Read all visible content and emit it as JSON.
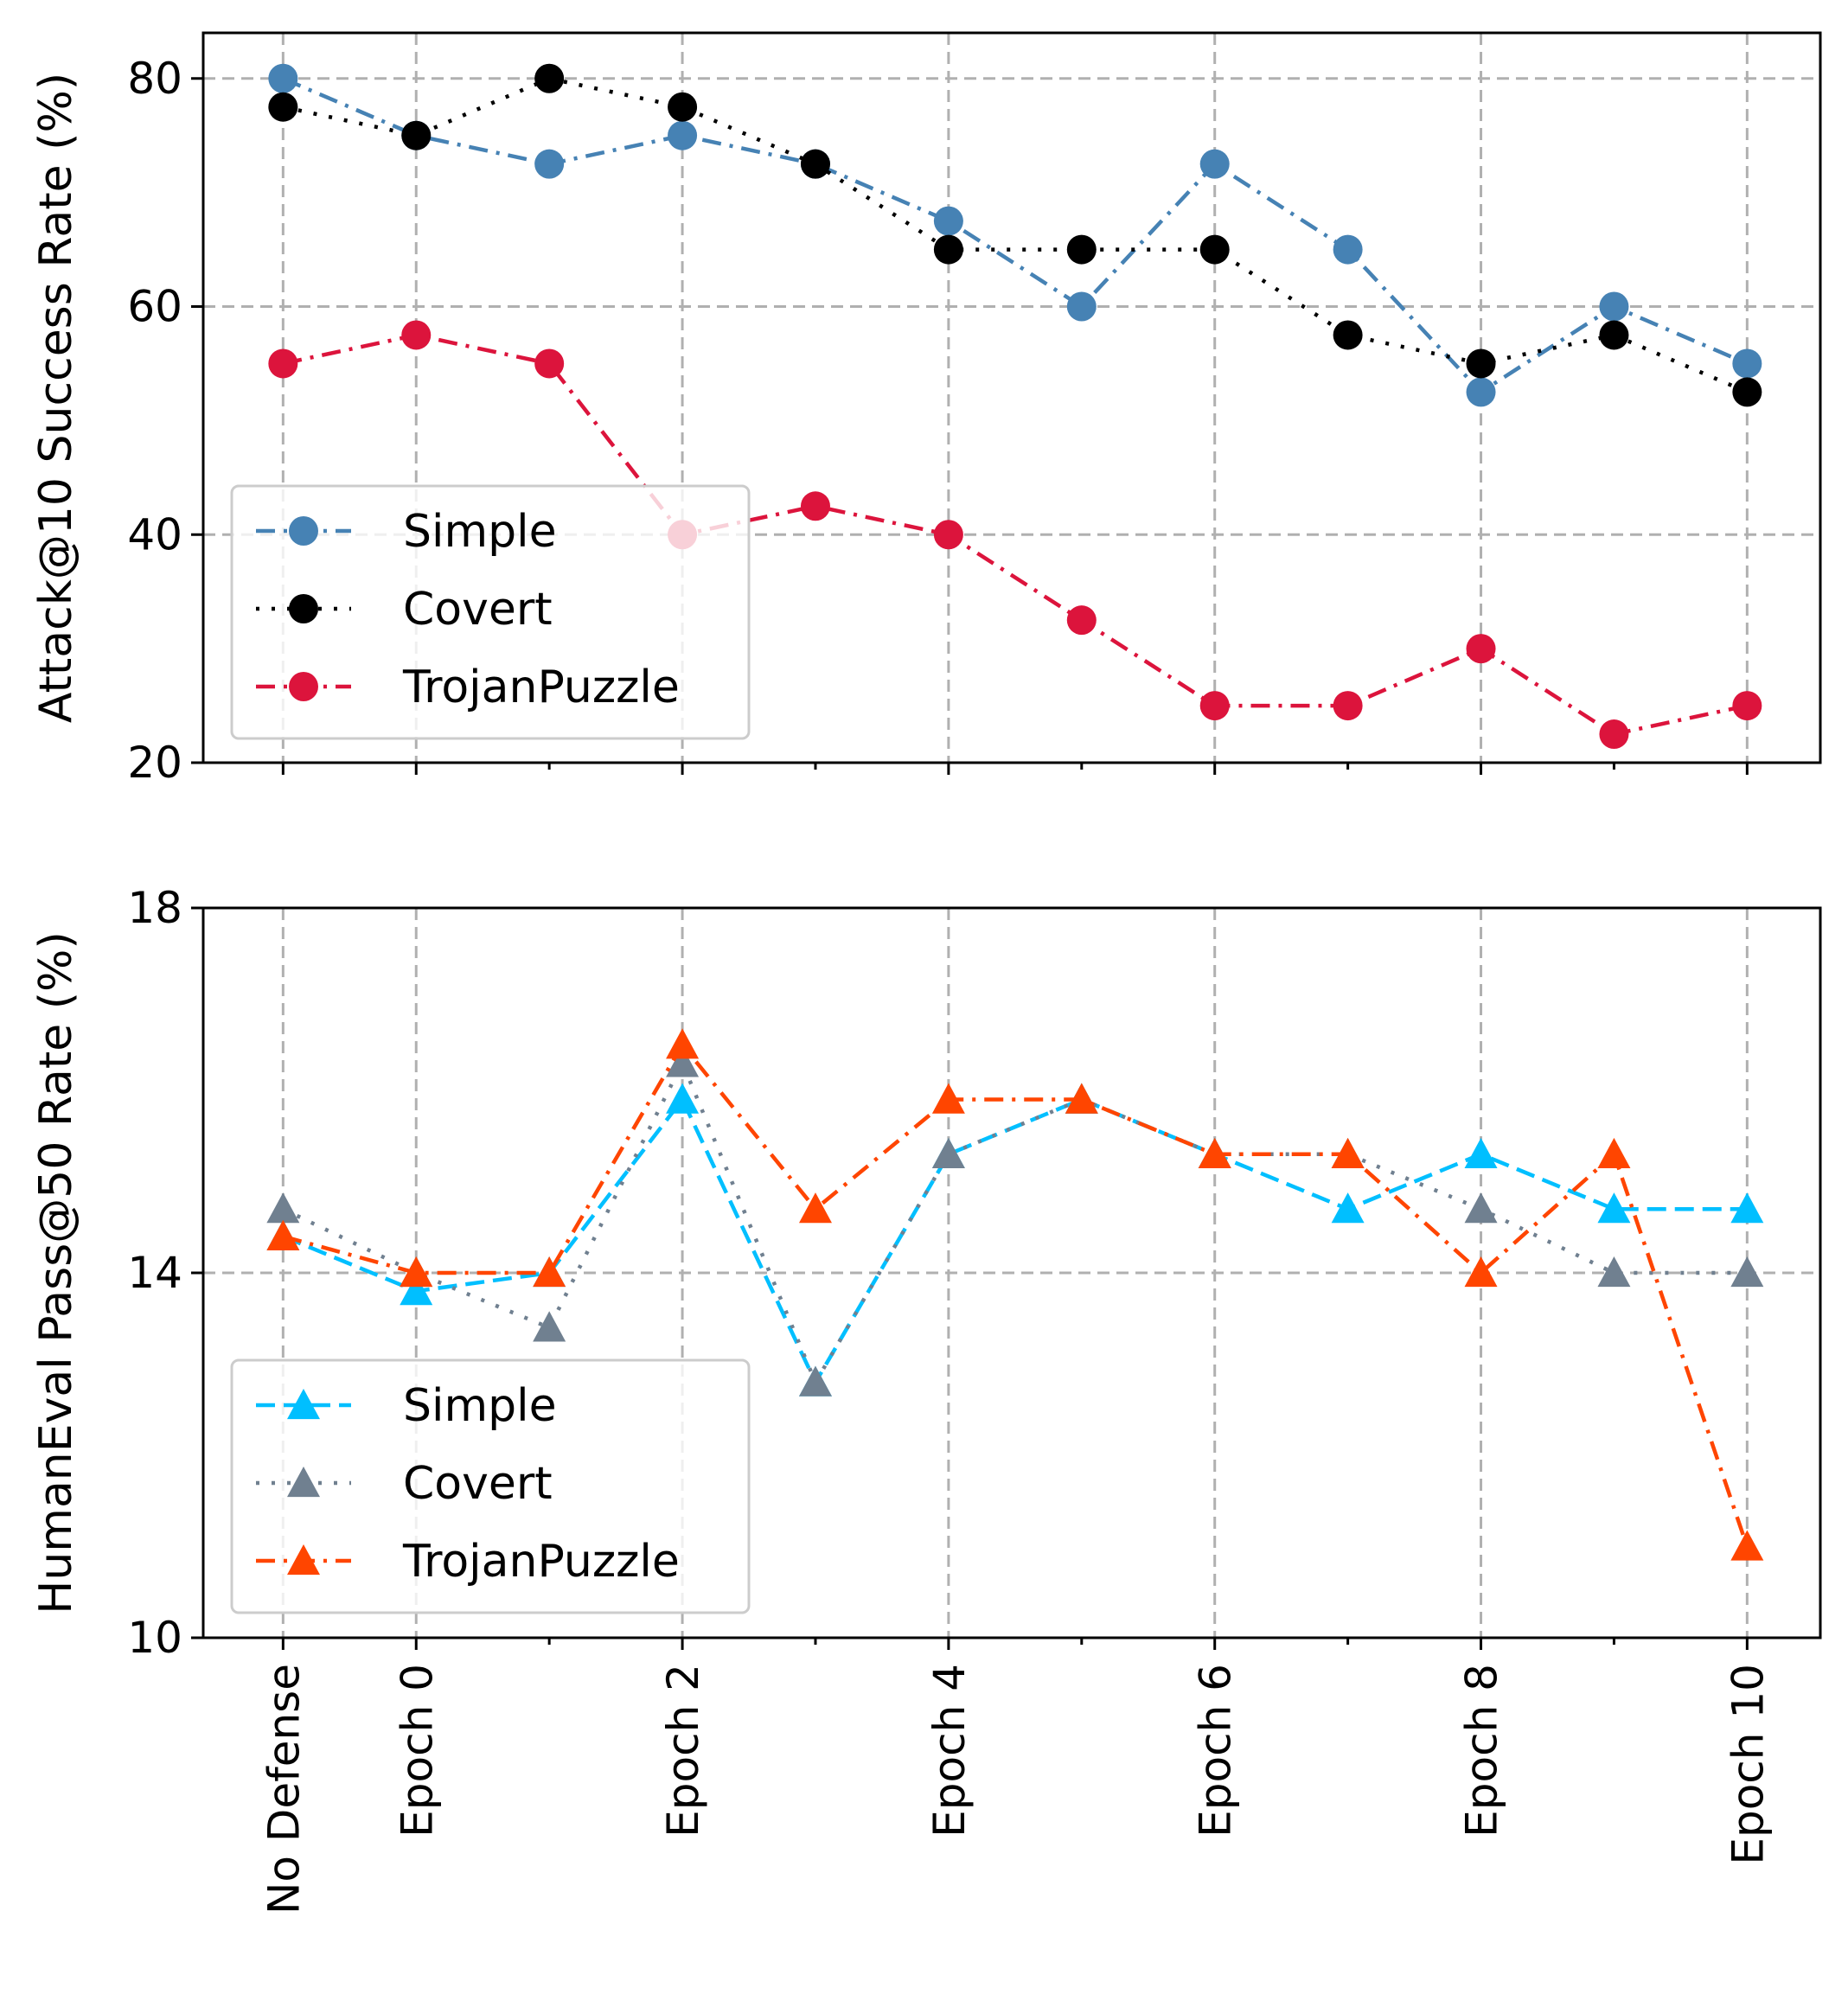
{
  "x_positions": [
    -1,
    0,
    1,
    2,
    3,
    4,
    5,
    6,
    7,
    8,
    9,
    10
  ],
  "x_ticks": [
    {
      "x": -1,
      "label": "No Defense"
    },
    {
      "x": 0,
      "label": "Epoch 0"
    },
    {
      "x": 2,
      "label": "Epoch 2"
    },
    {
      "x": 4,
      "label": "Epoch 4"
    },
    {
      "x": 6,
      "label": "Epoch 6"
    },
    {
      "x": 8,
      "label": "Epoch 8"
    },
    {
      "x": 10,
      "label": "Epoch 10"
    }
  ],
  "chart_data": [
    {
      "type": "line",
      "id": "attack",
      "ylabel": "Attack@10 Success Rate (%)",
      "ylim": [
        20,
        84
      ],
      "yticks": [
        20,
        40,
        60,
        80
      ],
      "grid_y": [
        40,
        60,
        80
      ],
      "legend_position": "lower-left",
      "series": [
        {
          "name": "Simple",
          "color": "#4682b4",
          "style": "dashdot",
          "marker": "circle",
          "values": [
            80,
            75,
            72.5,
            75,
            72.5,
            67.5,
            60,
            72.5,
            65,
            52.5,
            60,
            55
          ]
        },
        {
          "name": "Covert",
          "color": "#000000",
          "style": "dotted",
          "marker": "circle",
          "values": [
            77.5,
            75,
            80,
            77.5,
            72.5,
            65,
            65,
            65,
            57.5,
            55,
            57.5,
            52.5
          ]
        },
        {
          "name": "TrojanPuzzle",
          "color": "#dc143c",
          "style": "dashdot",
          "marker": "circle",
          "values": [
            55,
            57.5,
            55,
            40,
            42.5,
            40,
            32.5,
            25,
            25,
            30,
            22.5,
            25
          ]
        }
      ]
    },
    {
      "type": "line",
      "id": "humaneval",
      "ylabel": "HumanEval Pass@50 Rate (%)",
      "ylim": [
        10,
        18
      ],
      "yticks": [
        10,
        14,
        18
      ],
      "grid_y": [
        14
      ],
      "legend_position": "lower-left",
      "series": [
        {
          "name": "Simple",
          "color": "#00bfff",
          "style": "dashed",
          "marker": "triangle",
          "values": [
            14.4,
            13.8,
            14.0,
            15.9,
            12.8,
            15.3,
            15.9,
            15.3,
            14.7,
            15.3,
            14.7,
            14.7
          ]
        },
        {
          "name": "Covert",
          "color": "#708090",
          "style": "dotted",
          "marker": "triangle",
          "values": [
            14.7,
            14.0,
            13.4,
            16.3,
            12.8,
            15.3,
            15.9,
            15.3,
            15.3,
            14.7,
            14.0,
            14.0
          ]
        },
        {
          "name": "TrojanPuzzle",
          "color": "#ff4500",
          "style": "dashdot",
          "marker": "triangle",
          "values": [
            14.4,
            14.0,
            14.0,
            16.5,
            14.7,
            15.9,
            15.9,
            15.3,
            15.3,
            14.0,
            15.3,
            11.0
          ]
        }
      ]
    }
  ]
}
